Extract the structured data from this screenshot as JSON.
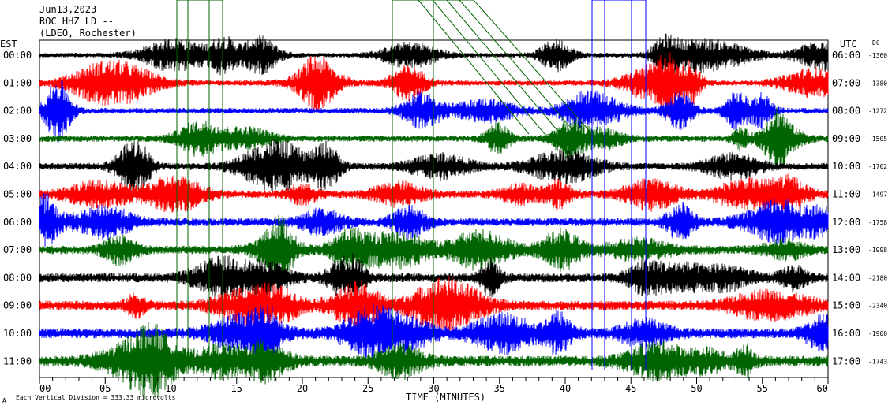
{
  "header": {
    "date": "Jun13,2023",
    "station": "ROC HHZ LD --",
    "network": "(LDEO, Rochester)",
    "left_zone": "EST",
    "right_zone": "UTC",
    "dc_heading": "DC"
  },
  "chart_data": {
    "type": "line",
    "title": "",
    "xlabel": "TIME (MINUTES)",
    "ylabel": "",
    "xlim": [
      0,
      60
    ],
    "x_ticks": [
      "00",
      "05",
      "10",
      "15",
      "20",
      "25",
      "30",
      "35",
      "40",
      "45",
      "50",
      "55",
      "60"
    ],
    "footer_note": "Each Vertical Division = 333.33 microvolts",
    "footer_mark": "A",
    "rows": [
      {
        "est": "00:00",
        "utc": "06:00",
        "dc": "-1360",
        "color": "#000000"
      },
      {
        "est": "01:00",
        "utc": "07:00",
        "dc": "-1380",
        "color": "#ff0000"
      },
      {
        "est": "02:00",
        "utc": "08:00",
        "dc": "-1272",
        "color": "#0000ff"
      },
      {
        "est": "03:00",
        "utc": "09:00",
        "dc": "-1505",
        "color": "#006400"
      },
      {
        "est": "04:00",
        "utc": "10:00",
        "dc": "-1702",
        "color": "#000000"
      },
      {
        "est": "05:00",
        "utc": "11:00",
        "dc": "-1497",
        "color": "#ff0000"
      },
      {
        "est": "06:00",
        "utc": "12:00",
        "dc": "-1758",
        "color": "#0000ff"
      },
      {
        "est": "07:00",
        "utc": "13:00",
        "dc": "-1998",
        "color": "#006400"
      },
      {
        "est": "08:00",
        "utc": "14:00",
        "dc": "-2180",
        "color": "#000000"
      },
      {
        "est": "09:00",
        "utc": "15:00",
        "dc": "-2340",
        "color": "#ff0000"
      },
      {
        "est": "10:00",
        "utc": "16:00",
        "dc": "-1900",
        "color": "#0000ff"
      },
      {
        "est": "11:00",
        "utc": "17:00",
        "dc": "-1743",
        "color": "#006400"
      }
    ]
  }
}
